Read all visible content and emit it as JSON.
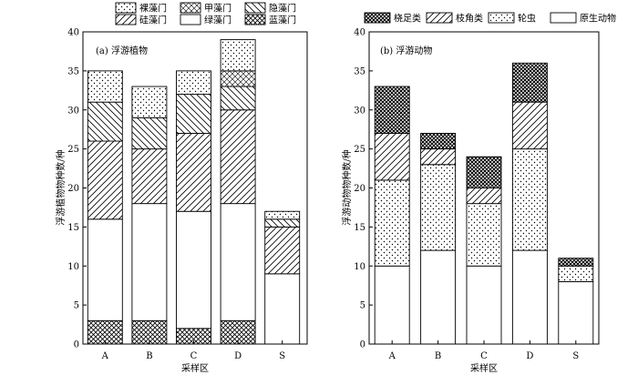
{
  "chart_data": [
    {
      "type": "bar",
      "stacked": true,
      "title": "(a) 浮游植物",
      "xlabel": "采样区",
      "ylabel": "浮游植物物种数/种",
      "categories": [
        "A",
        "B",
        "C",
        "D",
        "S"
      ],
      "ylim": [
        0,
        40
      ],
      "yticks": [
        0,
        5,
        10,
        15,
        20,
        25,
        30,
        35,
        40
      ],
      "grid": false,
      "legend_position": "top",
      "series": [
        {
          "name": "蓝藻门",
          "pattern": "crosshatch",
          "values": [
            3,
            3,
            2,
            3,
            0
          ]
        },
        {
          "name": "绿藻门",
          "pattern": "blank",
          "values": [
            13,
            15,
            15,
            15,
            9
          ]
        },
        {
          "name": "硅藻门",
          "pattern": "diagonal-right",
          "values": [
            10,
            7,
            10,
            12,
            6
          ]
        },
        {
          "name": "隐藻门",
          "pattern": "diagonal-left",
          "values": [
            5,
            4,
            5,
            3,
            1
          ]
        },
        {
          "name": "甲藻门",
          "pattern": "diamond",
          "values": [
            0,
            0,
            0,
            2,
            0
          ]
        },
        {
          "name": "裸藻门",
          "pattern": "dots",
          "values": [
            4,
            4,
            3,
            4,
            1
          ]
        }
      ]
    },
    {
      "type": "bar",
      "stacked": true,
      "title": "(b) 浮游动物",
      "xlabel": "采样区",
      "ylabel": "浮游动物物种数/种",
      "categories": [
        "A",
        "B",
        "C",
        "D",
        "S"
      ],
      "ylim": [
        0,
        40
      ],
      "yticks": [
        0,
        5,
        10,
        15,
        20,
        25,
        30,
        35,
        40
      ],
      "grid": false,
      "legend_position": "top",
      "series": [
        {
          "name": "原生动物",
          "pattern": "blank",
          "values": [
            10,
            12,
            10,
            12,
            8
          ]
        },
        {
          "name": "轮虫",
          "pattern": "dots",
          "values": [
            11,
            11,
            8,
            13,
            2
          ]
        },
        {
          "name": "枝角类",
          "pattern": "diagonal-right",
          "values": [
            6,
            2,
            2,
            6,
            0
          ]
        },
        {
          "name": "桡足类",
          "pattern": "dense-check",
          "values": [
            6,
            2,
            4,
            5,
            1
          ]
        }
      ]
    }
  ],
  "legends": [
    {
      "items": [
        {
          "label": "裸藻门",
          "pattern": "dots"
        },
        {
          "label": "甲藻门",
          "pattern": "diamond"
        },
        {
          "label": "隐藻门",
          "pattern": "diagonal-left"
        },
        {
          "label": "硅藻门",
          "pattern": "diagonal-right"
        },
        {
          "label": "绿藻门",
          "pattern": "blank"
        },
        {
          "label": "蓝藻门",
          "pattern": "crosshatch"
        }
      ]
    },
    {
      "items": [
        {
          "label": "桡足类",
          "pattern": "dense-check"
        },
        {
          "label": "枝角类",
          "pattern": "diagonal-right"
        },
        {
          "label": "轮虫",
          "pattern": "dots"
        },
        {
          "label": "原生动物",
          "pattern": "blank"
        }
      ]
    }
  ],
  "colors": {
    "ink": "#000000",
    "background": "#ffffff",
    "fill": "#ffffff"
  }
}
